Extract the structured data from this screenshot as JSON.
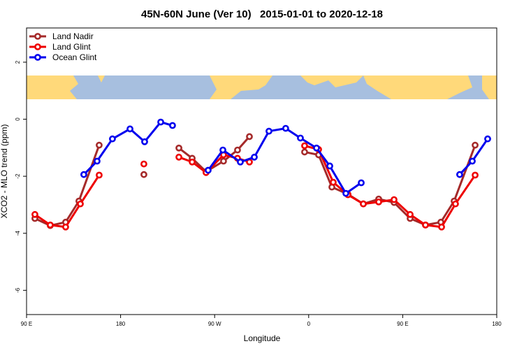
{
  "chart_data": {
    "type": "line",
    "title": "45N-60N June (Ver 10)   2015-01-01 to 2020-12-18",
    "x_label": "Longitude",
    "y_label": "XCO2 - MLO trend (ppm)",
    "xlim": [
      90,
      540
    ],
    "ylim": [
      -6.85,
      3.2
    ],
    "xticks": [
      {
        "value": 90,
        "label": "90 E"
      },
      180,
      {
        "value": 270,
        "label": "90 W"
      },
      {
        "value": 360,
        "label": "0"
      },
      {
        "value": 450,
        "label": "90 E"
      },
      {
        "value": 540,
        "label": "180"
      }
    ],
    "yticks": [
      -6,
      -4,
      -2,
      0,
      2
    ],
    "legend": "top-left",
    "series": [
      {
        "name": "Land Nadir",
        "color": "#a52a2a",
        "x": [
          98,
          112.7,
          127.4,
          140.1,
          159.5,
          180,
          202.3,
          220,
          235.8,
          248.5,
          261.8,
          278.5,
          291.9,
          303.3,
          330,
          356.1,
          369.5,
          382.2,
          397.6,
          412.3,
          427.0,
          441.7,
          457.1,
          471.8,
          486.5,
          499.2,
          519.3
        ],
        "values": [
          -3.48,
          -3.73,
          -3.61,
          -2.87,
          -0.91,
          null,
          -1.94,
          null,
          -1.01,
          -1.37,
          -1.84,
          -1.47,
          -1.08,
          -0.61,
          null,
          -1.15,
          -1.25,
          -2.38,
          -2.63,
          -2.97,
          -2.8,
          -2.92,
          -3.48,
          -3.71,
          -3.61,
          -2.87,
          -0.91
        ]
      },
      {
        "name": "Land Glint",
        "color": "#ee0000",
        "x": [
          98,
          112.7,
          127.4,
          141.5,
          159.5,
          180,
          202.3,
          220,
          235.8,
          248.5,
          261.8,
          278.5,
          291.9,
          303.3,
          330,
          356.1,
          369.5,
          383.5,
          397.6,
          412.3,
          427.0,
          441.7,
          457.1,
          471.8,
          487.2,
          500.5,
          519.3
        ],
        "values": [
          -3.34,
          -3.71,
          -3.78,
          -2.97,
          -1.96,
          null,
          -1.57,
          null,
          -1.33,
          -1.5,
          -1.87,
          -1.25,
          -1.37,
          -1.5,
          null,
          -0.93,
          -1.06,
          -2.21,
          -2.65,
          -2.97,
          -2.9,
          -2.82,
          -3.34,
          -3.71,
          -3.78,
          -2.97,
          -1.96
        ]
      },
      {
        "name": "Ocean Glint",
        "color": "#0000ee",
        "x": [
          144.8,
          157.5,
          172.2,
          189.0,
          203.0,
          218.4,
          229.7,
          245,
          263.8,
          277.9,
          294.6,
          308.0,
          322.0,
          338.0,
          352.1,
          367.5,
          380.2,
          395.6,
          410.3,
          460,
          504.5,
          516.6,
          531.3
        ],
        "values": [
          -1.94,
          -1.47,
          -0.69,
          -0.34,
          -0.79,
          -0.1,
          -0.22,
          null,
          -1.79,
          -1.08,
          -1.5,
          -1.33,
          -0.42,
          -0.32,
          -0.66,
          -1.01,
          -1.64,
          -2.6,
          -2.23,
          null,
          -1.94,
          -1.47,
          -0.69
        ]
      }
    ]
  }
}
